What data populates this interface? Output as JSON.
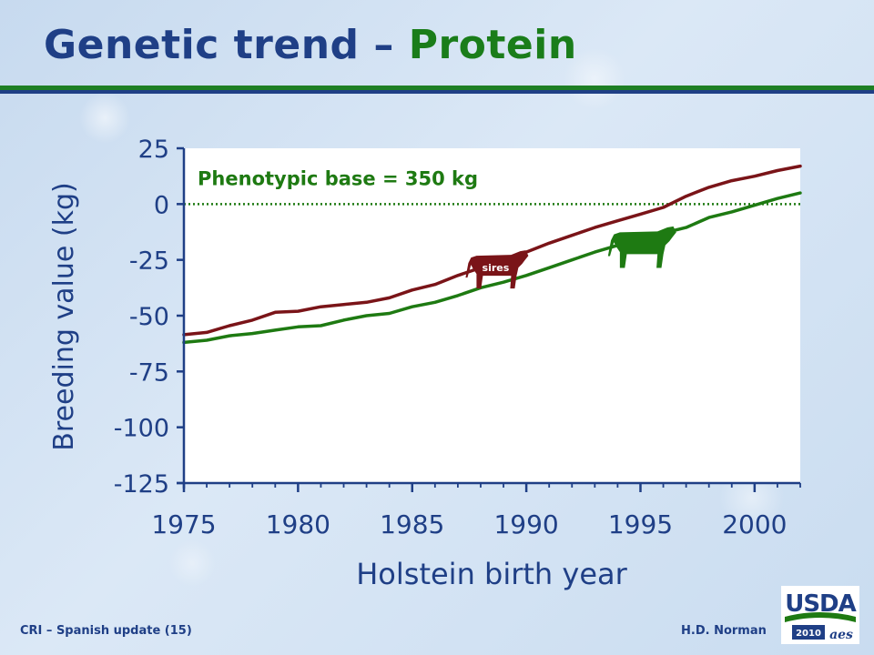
{
  "slide": {
    "title_part1": "Genetic trend",
    "title_dash": "–",
    "title_part2": "Protein",
    "footer_left": "CRI – Spanish update (15)",
    "footer_right": "H.D. Norman",
    "logo_text": "USDA",
    "logo_year": "2010",
    "logo_mark": "aes"
  },
  "colors": {
    "title_blue": "#1f3f86",
    "title_green": "#1a7d1a",
    "sires_series": "#7a1418",
    "cows_series": "#1e7a12",
    "base_line": "#1e7a12"
  },
  "icons": {
    "sires_marker": "cow-silhouette-icon",
    "cows_marker": "cow-silhouette-icon"
  },
  "chart_data": {
    "type": "line",
    "title": "",
    "xlabel": "Holstein birth year",
    "ylabel": "Breeding value (kg)",
    "xlim": [
      1975,
      2002
    ],
    "ylim": [
      -125,
      25
    ],
    "x_ticks": [
      1975,
      1980,
      1985,
      1990,
      1995,
      2000
    ],
    "y_ticks": [
      25,
      0,
      -25,
      -50,
      -75,
      -100,
      -125
    ],
    "grid": false,
    "legend": "none",
    "x": [
      1975,
      1976,
      1977,
      1978,
      1979,
      1980,
      1981,
      1982,
      1983,
      1984,
      1985,
      1986,
      1987,
      1988,
      1989,
      1990,
      1991,
      1992,
      1993,
      1994,
      1995,
      1996,
      1997,
      1998,
      1999,
      2000,
      2001,
      2002
    ],
    "series": [
      {
        "name": "sires",
        "color": "#7a1418",
        "values": [
          -58.5,
          -57.5,
          -54.5,
          -52,
          -48.5,
          -48,
          -46,
          -45,
          -44,
          -42,
          -38.5,
          -36,
          -32,
          -28.5,
          -25,
          -21.5,
          -17.5,
          -14,
          -10.5,
          -7.5,
          -4.5,
          -1.5,
          3.5,
          7.5,
          10.5,
          12.5,
          15,
          17
        ]
      },
      {
        "name": "",
        "color": "#1e7a12",
        "values": [
          -62,
          -61,
          -59,
          -58,
          -56.5,
          -55,
          -54.5,
          -52,
          -50,
          -49,
          -46,
          -44,
          -41,
          -37.5,
          -35,
          -32,
          -28.5,
          -25,
          -21.5,
          -18.5,
          -16.5,
          -13,
          -10.5,
          -6,
          -3.5,
          -0.5,
          2.5,
          5
        ]
      }
    ],
    "annotations": [
      {
        "text": "Phenotypic base = 350 kg",
        "x": 1975.6,
        "y": 8.5
      },
      {
        "text": "sires",
        "x": 1987.3,
        "y": -21.5
      }
    ],
    "reference_line": {
      "y": 0
    }
  }
}
